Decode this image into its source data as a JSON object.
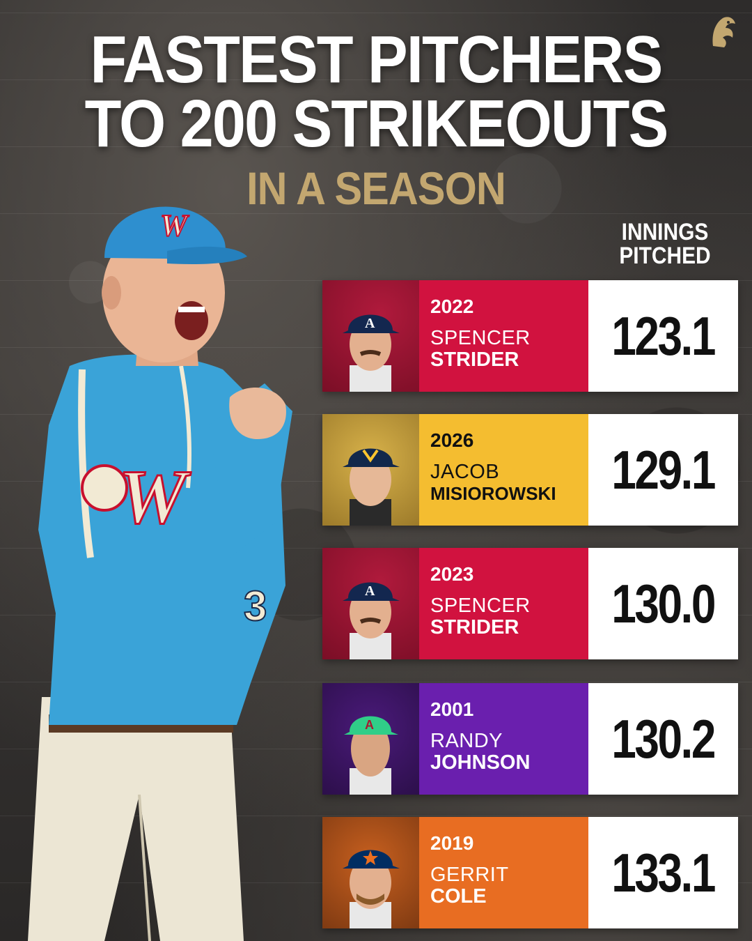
{
  "title_line1": "FASTEST PITCHERS",
  "title_line2": "TO 200 STRIKEOUTS",
  "subtitle": "IN A SEASON",
  "column_header_line1": "INNINGS",
  "column_header_line2": "PITCHED",
  "colors": {
    "gold": "#c3a770",
    "braves_red": "#d1123f",
    "brewers_gold": "#f4bd30",
    "dbacks_purple": "#6a1fae",
    "astros_orange": "#e86d22"
  },
  "rows": [
    {
      "year": "2022",
      "first": "SPENCER",
      "last": "STRIDER",
      "innings": "123.1",
      "team_icon": "braves-logo-icon"
    },
    {
      "year": "2026",
      "first": "JACOB",
      "last": "MISIOROWSKI",
      "innings": "129.1",
      "team_icon": "brewers-logo-icon"
    },
    {
      "year": "2023",
      "first": "SPENCER",
      "last": "STRIDER",
      "innings": "130.0",
      "team_icon": "braves-logo-icon"
    },
    {
      "year": "2001",
      "first": "RANDY",
      "last": "JOHNSON",
      "innings": "130.2",
      "team_icon": "diamondbacks-logo-icon"
    },
    {
      "year": "2019",
      "first": "GERRIT",
      "last": "COLE",
      "innings": "133.1",
      "team_icon": "astros-logo-icon"
    }
  ]
}
